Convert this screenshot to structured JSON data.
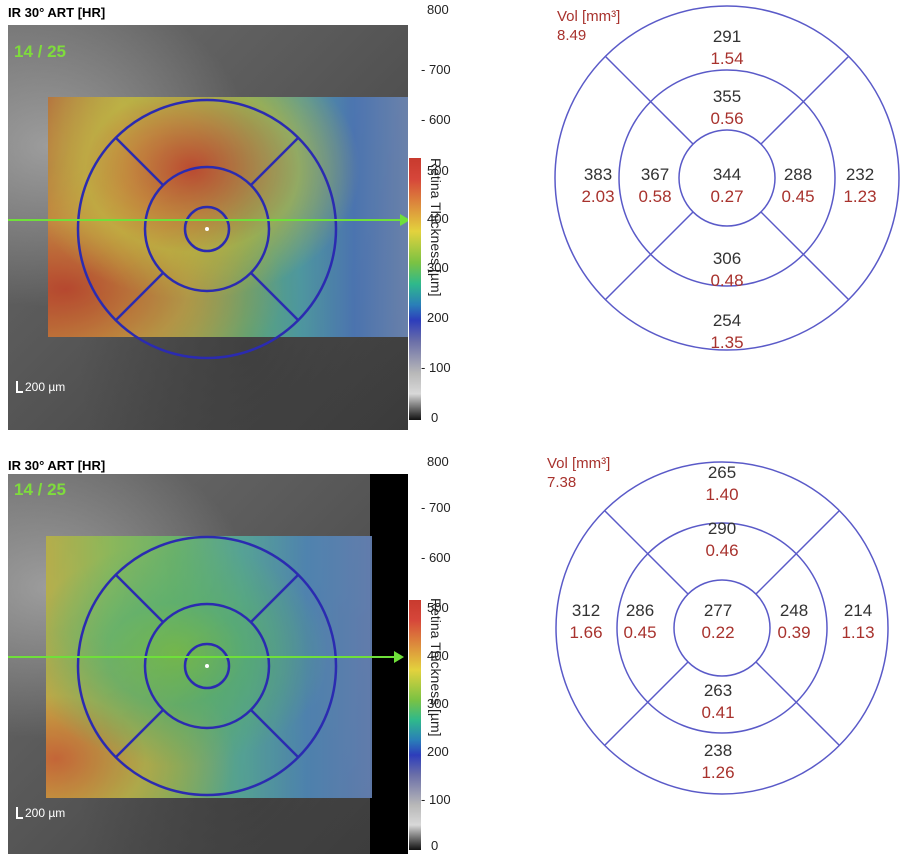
{
  "panels": [
    {
      "scan_label": "IR 30° ART [HR]",
      "frame_count": "14 / 25",
      "scale_bar": "200 µm",
      "colorbar": {
        "ticks": [
          "800",
          "700",
          "600",
          "500",
          "400",
          "300",
          "200",
          "100",
          "0"
        ],
        "axis_label": "Retina Thickness [µm]"
      },
      "vol_label": "Vol [mm³]",
      "vol_total": "8.49",
      "sectors": {
        "outer_superior": {
          "thickness": "291",
          "volume": "1.54"
        },
        "inner_superior": {
          "thickness": "355",
          "volume": "0.56"
        },
        "outer_nasal_left": {
          "thickness": "383",
          "volume": "2.03"
        },
        "inner_left": {
          "thickness": "367",
          "volume": "0.58"
        },
        "center": {
          "thickness": "344",
          "volume": "0.27"
        },
        "inner_right": {
          "thickness": "288",
          "volume": "0.45"
        },
        "outer_right": {
          "thickness": "232",
          "volume": "1.23"
        },
        "inner_inferior": {
          "thickness": "306",
          "volume": "0.48"
        },
        "outer_inferior": {
          "thickness": "254",
          "volume": "1.35"
        }
      }
    },
    {
      "scan_label": "IR 30° ART [HR]",
      "frame_count": "14 / 25",
      "scale_bar": "200 µm",
      "colorbar": {
        "ticks": [
          "800",
          "700",
          "600",
          "500",
          "400",
          "300",
          "200",
          "100",
          "0"
        ],
        "axis_label": "Retina Thickness [µm]"
      },
      "vol_label": "Vol [mm³]",
      "vol_total": "7.38",
      "sectors": {
        "outer_superior": {
          "thickness": "265",
          "volume": "1.40"
        },
        "inner_superior": {
          "thickness": "290",
          "volume": "0.46"
        },
        "outer_nasal_left": {
          "thickness": "312",
          "volume": "1.66"
        },
        "inner_left": {
          "thickness": "286",
          "volume": "0.45"
        },
        "center": {
          "thickness": "277",
          "volume": "0.22"
        },
        "inner_right": {
          "thickness": "248",
          "volume": "0.39"
        },
        "outer_right": {
          "thickness": "214",
          "volume": "1.13"
        },
        "inner_inferior": {
          "thickness": "263",
          "volume": "0.41"
        },
        "outer_inferior": {
          "thickness": "238",
          "volume": "1.26"
        }
      }
    }
  ],
  "colors": {
    "grid": "#2b2bb0",
    "scanline": "#6fe03a",
    "map_lines": "#5a5ac8",
    "volume_text": "#a8322d"
  }
}
